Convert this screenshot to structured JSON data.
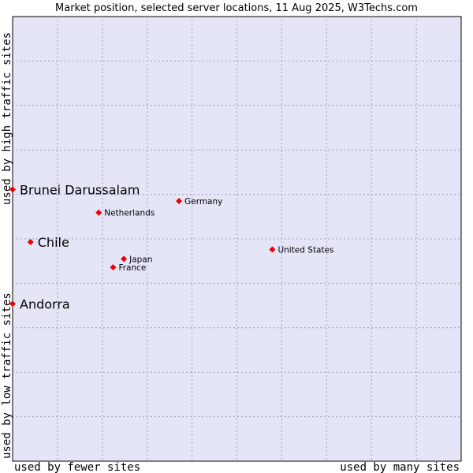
{
  "chart_data": {
    "type": "scatter",
    "title": "Market position, selected server locations, 11 Aug 2025, W3Techs.com",
    "xlabel_low": "used by fewer sites",
    "xlabel_high": "used by many sites",
    "ylabel_low": "used by low traffic sites",
    "ylabel_high": "used by high traffic sites",
    "xlim": [
      0,
      1
    ],
    "ylim": [
      0,
      1
    ],
    "grid": true,
    "background_color": "#e4e6f8",
    "marker_color": "#ee0000",
    "points": [
      {
        "name": "Brunei Darussalam",
        "x": 0.0,
        "y": 0.611,
        "emphasis": true
      },
      {
        "name": "Germany",
        "x": 0.371,
        "y": 0.585,
        "emphasis": false
      },
      {
        "name": "Netherlands",
        "x": 0.192,
        "y": 0.559,
        "emphasis": false
      },
      {
        "name": "Chile",
        "x": 0.04,
        "y": 0.493,
        "emphasis": true
      },
      {
        "name": "United States",
        "x": 0.579,
        "y": 0.476,
        "emphasis": false
      },
      {
        "name": "Japan",
        "x": 0.248,
        "y": 0.455,
        "emphasis": false
      },
      {
        "name": "France",
        "x": 0.224,
        "y": 0.436,
        "emphasis": false
      },
      {
        "name": "Andorra",
        "x": 0.0,
        "y": 0.354,
        "emphasis": true
      }
    ]
  }
}
